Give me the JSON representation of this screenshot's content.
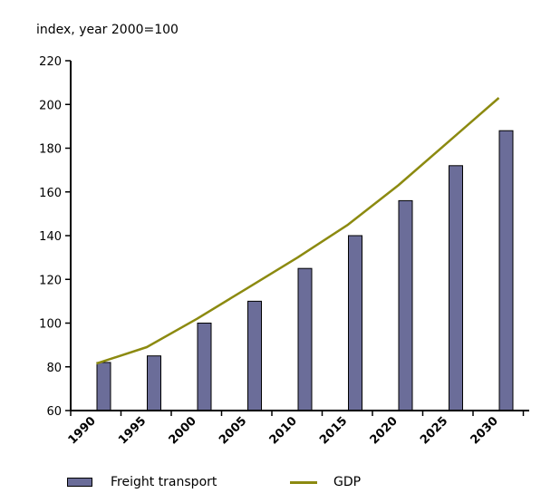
{
  "chart_data": {
    "type": "bar",
    "ylabel": "index, year 2000=100",
    "categories": [
      "1990",
      "1995",
      "2000",
      "2005",
      "2010",
      "2015",
      "2020",
      "2025",
      "2030"
    ],
    "ylim": [
      60,
      220
    ],
    "yticks": [
      60,
      80,
      100,
      120,
      140,
      160,
      180,
      200,
      220
    ],
    "series": [
      {
        "name": "Freight transport",
        "kind": "bar",
        "values": [
          82,
          85,
          100,
          110,
          125,
          140,
          156,
          172,
          188
        ]
      },
      {
        "name": "GDP",
        "kind": "line",
        "values": [
          81.5,
          89,
          102,
          116,
          130,
          145,
          163,
          183,
          203
        ]
      }
    ],
    "colors": {
      "bar": "#6b6d99",
      "line": "#8c8a10"
    },
    "grid": false,
    "legend": "bottom"
  }
}
